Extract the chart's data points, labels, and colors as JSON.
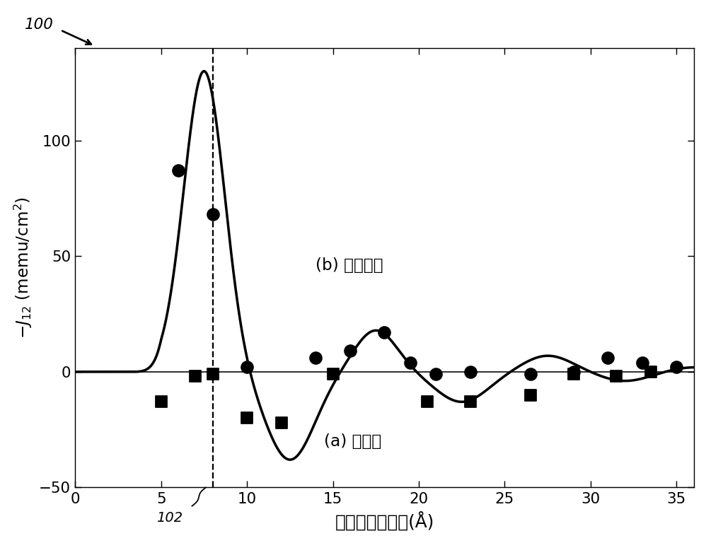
{
  "xlabel": "钌间隔物层厚度(Å)",
  "ylabel": "-J$_{12}$ (memu/cm$^2$)",
  "xlim": [
    0,
    36
  ],
  "ylim": [
    -50,
    140
  ],
  "yticks": [
    -50,
    0,
    50,
    100
  ],
  "xticks": [
    0,
    5,
    10,
    15,
    20,
    25,
    30,
    35
  ],
  "dashed_x": 8,
  "annotation_a": "(a) 铁磁性",
  "annotation_b": "(b) 反铁磁性",
  "circle_points": [
    [
      6.0,
      87
    ],
    [
      8.0,
      68
    ],
    [
      10.0,
      2
    ],
    [
      14.0,
      6
    ],
    [
      16.0,
      9
    ],
    [
      18.0,
      17
    ],
    [
      19.5,
      4
    ],
    [
      21.0,
      -1
    ],
    [
      23.0,
      0
    ],
    [
      26.5,
      -1
    ],
    [
      29.0,
      0
    ],
    [
      31.0,
      6
    ],
    [
      33.0,
      4
    ],
    [
      35.0,
      2
    ]
  ],
  "square_points": [
    [
      5.0,
      -13
    ],
    [
      7.0,
      -2
    ],
    [
      8.0,
      -1
    ],
    [
      10.0,
      -20
    ],
    [
      12.0,
      -22
    ],
    [
      15.0,
      -1
    ],
    [
      20.5,
      -13
    ],
    [
      23.0,
      -13
    ],
    [
      26.5,
      -10
    ],
    [
      29.0,
      -1
    ],
    [
      31.5,
      -2
    ],
    [
      33.5,
      0
    ]
  ],
  "curve_color": "#000000",
  "marker_color": "#000000",
  "background_color": "#ffffff"
}
